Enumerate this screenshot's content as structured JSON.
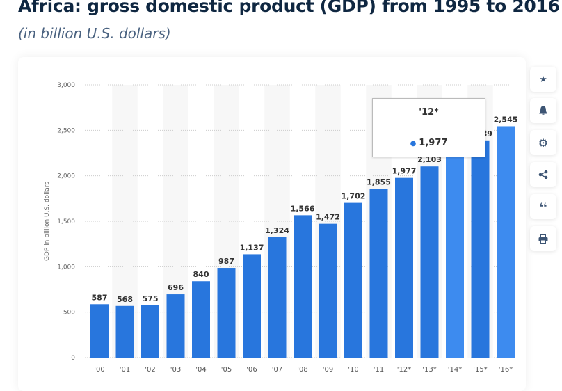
{
  "header": {
    "title": "Africa: gross domestic product (GDP) from 1995 to 2016",
    "subtitle": "(in billion U.S. dollars)"
  },
  "chart_data": {
    "type": "bar",
    "ylabel": "GDP in billion U.S. dollars",
    "xlabel": "",
    "ylim": [
      0,
      3000
    ],
    "yticks": [
      "0",
      "500",
      "1,000",
      "1,500",
      "2,000",
      "2,500",
      "3,000"
    ],
    "categories": [
      "'00",
      "'01",
      "'02",
      "'03",
      "'04",
      "'05",
      "'06",
      "'07",
      "'08",
      "'09",
      "'10",
      "'11",
      "'12*",
      "'13*",
      "'14*",
      "'15*",
      "'16*"
    ],
    "values": [
      587,
      568,
      575,
      696,
      840,
      987,
      1137,
      1324,
      1566,
      1472,
      1702,
      1855,
      1977,
      2103,
      2240,
      2389,
      2545
    ],
    "labels": [
      "587",
      "568",
      "575",
      "696",
      "840",
      "987",
      "1,137",
      "1,324",
      "1,566",
      "1,472",
      "1,702",
      "1,855",
      "1,977",
      "2,103",
      "2,240",
      "2,389",
      "2,545"
    ],
    "colors": {
      "bar": "#2876dd",
      "highlight": "#3d8bef"
    },
    "grid": true
  },
  "tooltip": {
    "category": "'12*",
    "value": "1,977"
  },
  "sidebar": {
    "buttons": [
      {
        "icon": "star-icon"
      },
      {
        "icon": "bell-icon"
      },
      {
        "icon": "gear-icon"
      },
      {
        "icon": "share-icon"
      },
      {
        "icon": "quote-icon"
      },
      {
        "icon": "print-icon"
      }
    ]
  }
}
